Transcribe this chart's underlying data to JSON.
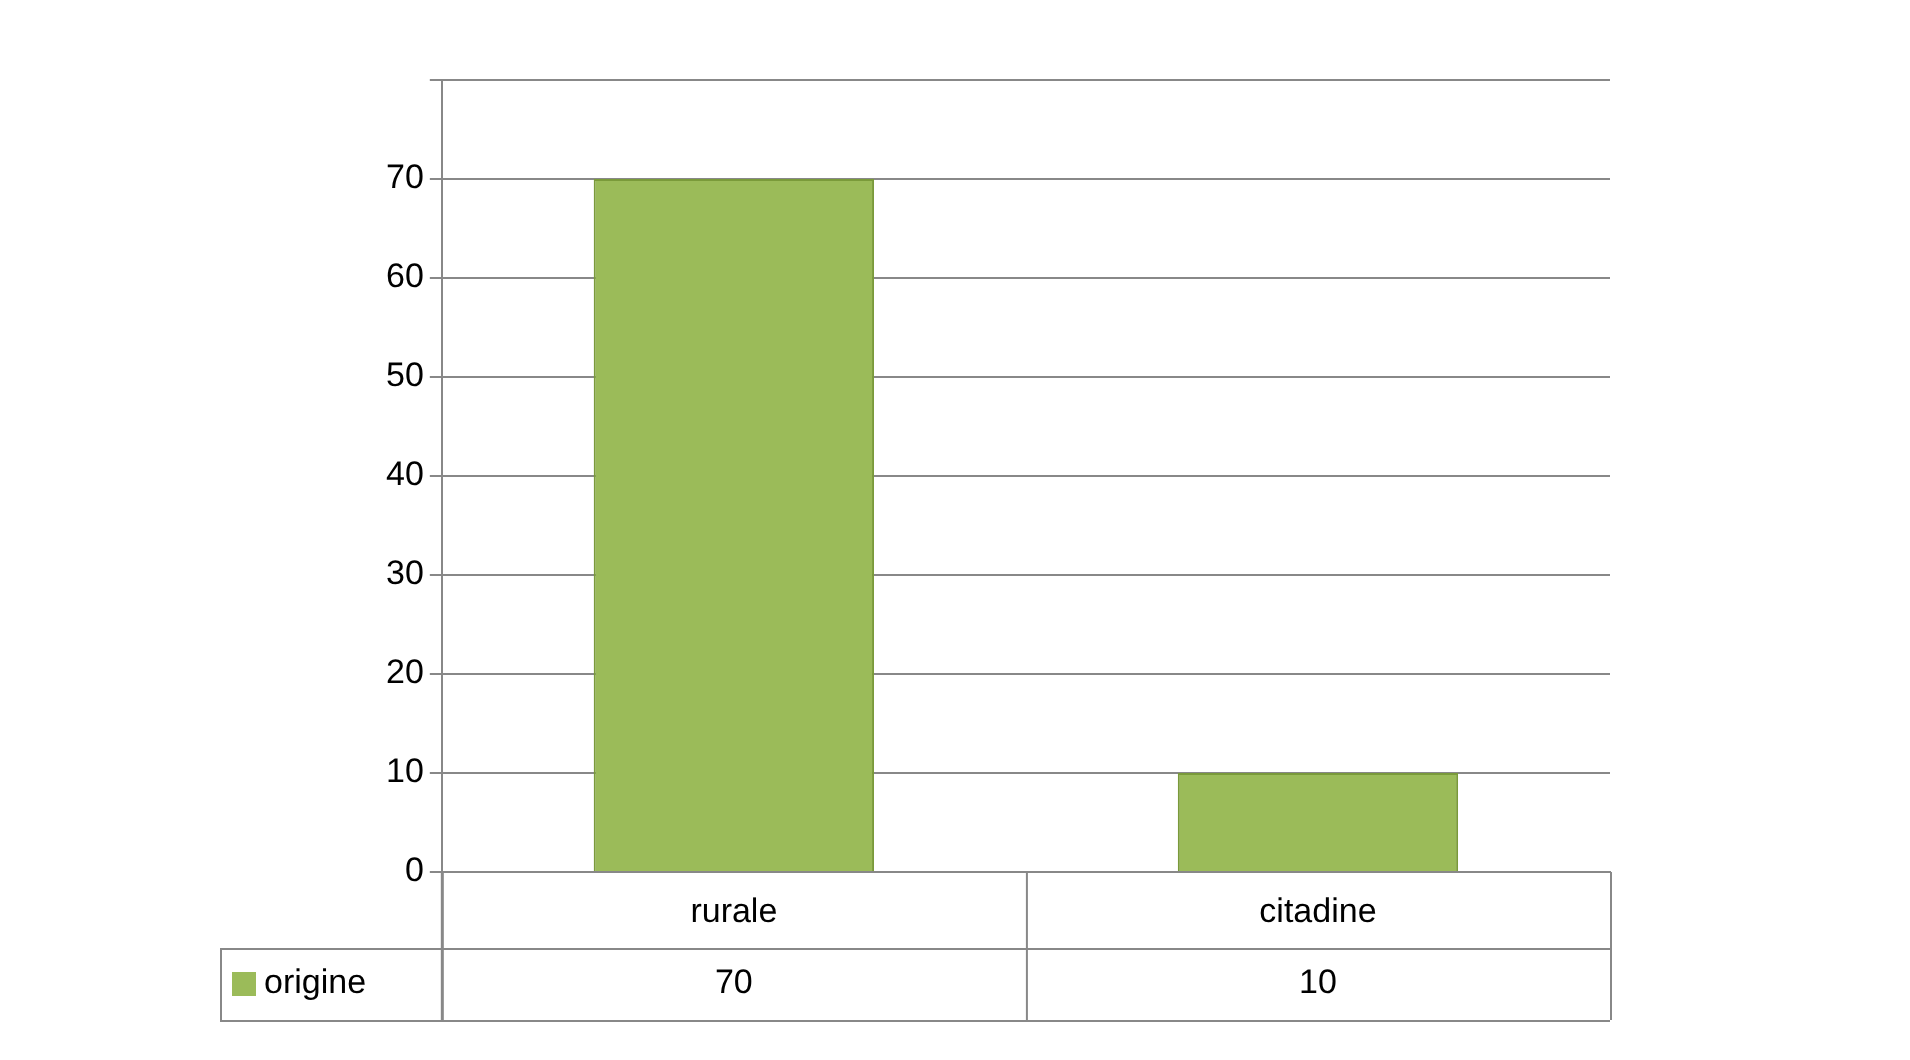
{
  "chart_data": {
    "type": "bar",
    "categories": [
      "rurale",
      "citadine"
    ],
    "series": [
      {
        "name": "origine",
        "color": "#9bbb59",
        "values": [
          70,
          10
        ]
      }
    ],
    "ylim": [
      0,
      80
    ],
    "yticks": [
      0,
      10,
      20,
      30,
      40,
      50,
      60,
      70,
      {
        "value": 80,
        "label": null
      }
    ],
    "grid": "y",
    "legend": "bottom left",
    "data_labels": true
  }
}
